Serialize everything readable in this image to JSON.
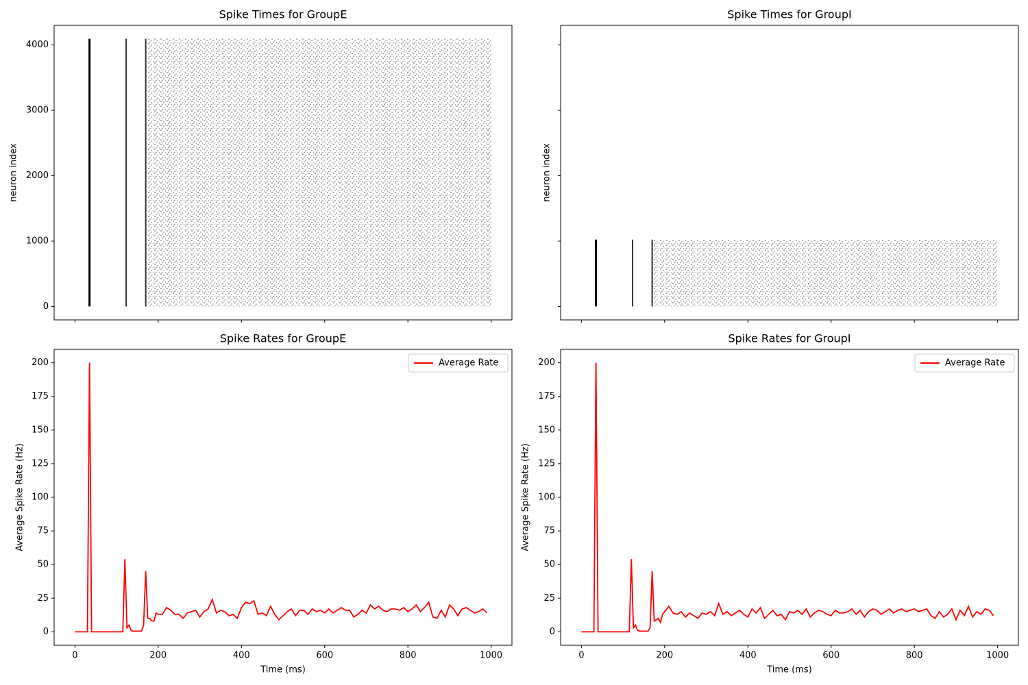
{
  "chart_data": [
    {
      "type": "raster",
      "title": "Spike Times for GroupE",
      "y_label": "neuron index",
      "color": "black",
      "xlim": [
        -50,
        1050
      ],
      "xticks": [
        0,
        200,
        400,
        600,
        800,
        1000
      ],
      "show_xtick_labels": false,
      "ylim": [
        -205,
        4300
      ],
      "yticks": [
        0,
        1000,
        2000,
        3000,
        4000
      ],
      "show_ytick_labels": true,
      "bursts": [
        {
          "x": 35,
          "y": [
            0,
            4095
          ]
        },
        {
          "x": 123,
          "y": [
            0,
            4095
          ]
        },
        {
          "x": 170,
          "y": [
            0,
            4095
          ]
        }
      ],
      "dense_region": {
        "x": [
          170,
          1000
        ],
        "y": [
          0,
          4095
        ]
      }
    },
    {
      "type": "raster",
      "title": "Spike Times for GroupI",
      "y_label": "neuron index",
      "color": "black",
      "xlim": [
        -50,
        1050
      ],
      "xticks": [
        0,
        200,
        400,
        600,
        800,
        1000
      ],
      "show_xtick_labels": false,
      "ylim": [
        -205,
        4300
      ],
      "yticks": [
        0,
        1000,
        2000,
        3000,
        4000
      ],
      "show_ytick_labels": false,
      "bursts": [
        {
          "x": 35,
          "y": [
            0,
            1023
          ]
        },
        {
          "x": 123,
          "y": [
            0,
            1023
          ]
        },
        {
          "x": 170,
          "y": [
            0,
            1023
          ]
        }
      ],
      "dense_region": {
        "x": [
          170,
          1000
        ],
        "y": [
          0,
          1023
        ]
      }
    },
    {
      "type": "line",
      "title": "Spike Rates for GroupE",
      "x_label": "Time (ms)",
      "y_label": "Average Spike Rate (Hz)",
      "xlim": [
        -50,
        1050
      ],
      "xticks": [
        0,
        200,
        400,
        600,
        800,
        1000
      ],
      "show_xtick_labels": true,
      "ylim": [
        -10,
        210
      ],
      "yticks": [
        0,
        25,
        50,
        75,
        100,
        125,
        150,
        175,
        200
      ],
      "show_ytick_labels": true,
      "legend": "upper right",
      "x": [
        0,
        5,
        10,
        15,
        20,
        25,
        30,
        35,
        40,
        45,
        50,
        55,
        60,
        65,
        70,
        75,
        80,
        85,
        90,
        95,
        100,
        105,
        110,
        115,
        120,
        125,
        130,
        135,
        140,
        145,
        150,
        155,
        160,
        165,
        170,
        175,
        180,
        185,
        190,
        195,
        200,
        210,
        220,
        230,
        240,
        250,
        260,
        270,
        280,
        290,
        300,
        310,
        320,
        330,
        340,
        350,
        360,
        370,
        380,
        390,
        400,
        410,
        420,
        430,
        440,
        450,
        460,
        470,
        480,
        490,
        500,
        510,
        520,
        530,
        540,
        550,
        560,
        570,
        580,
        590,
        600,
        610,
        620,
        630,
        640,
        650,
        660,
        670,
        680,
        690,
        700,
        710,
        720,
        730,
        740,
        750,
        760,
        770,
        780,
        790,
        800,
        810,
        820,
        830,
        840,
        850,
        860,
        870,
        880,
        890,
        900,
        910,
        920,
        930,
        940,
        950,
        960,
        970,
        980,
        990
      ],
      "series": [
        {
          "name": "Average Rate",
          "color": "red",
          "values": [
            0,
            0,
            0,
            0,
            0,
            0,
            0,
            200,
            0,
            0,
            0,
            0,
            0,
            0,
            0,
            0,
            0,
            0,
            0,
            0,
            0,
            0,
            0,
            0,
            54,
            3,
            5,
            1,
            0.5,
            0.5,
            0.5,
            0.5,
            0.5,
            5,
            45,
            10,
            10,
            8,
            8,
            14,
            13,
            13,
            18,
            16,
            13,
            13,
            10,
            14,
            15,
            16,
            11,
            15,
            17,
            24,
            14,
            16,
            15,
            12,
            13,
            10,
            18,
            22,
            21,
            23,
            13,
            14,
            12,
            19,
            13,
            9,
            12,
            15,
            17,
            12,
            16,
            16,
            13,
            17,
            15,
            16,
            14,
            17,
            14,
            16,
            18,
            16,
            16,
            11,
            13,
            16,
            14,
            20,
            17,
            19,
            16,
            15,
            17,
            17,
            16,
            18,
            15,
            17,
            20,
            15,
            18,
            22,
            11,
            10,
            16,
            11,
            20,
            17,
            12,
            17,
            18,
            16,
            14,
            15,
            17,
            14
          ]
        }
      ]
    },
    {
      "type": "line",
      "title": "Spike Rates for GroupI",
      "x_label": "Time (ms)",
      "y_label": "Average Spike Rate (Hz)",
      "xlim": [
        -50,
        1050
      ],
      "xticks": [
        0,
        200,
        400,
        600,
        800,
        1000
      ],
      "show_xtick_labels": true,
      "ylim": [
        -10,
        210
      ],
      "yticks": [
        0,
        25,
        50,
        75,
        100,
        125,
        150,
        175,
        200
      ],
      "show_ytick_labels": true,
      "legend": "upper right",
      "x": [
        0,
        5,
        10,
        15,
        20,
        25,
        30,
        35,
        40,
        45,
        50,
        55,
        60,
        65,
        70,
        75,
        80,
        85,
        90,
        95,
        100,
        105,
        110,
        115,
        120,
        125,
        130,
        135,
        140,
        145,
        150,
        155,
        160,
        165,
        170,
        175,
        180,
        185,
        190,
        195,
        200,
        210,
        220,
        230,
        240,
        250,
        260,
        270,
        280,
        290,
        300,
        310,
        320,
        330,
        340,
        350,
        360,
        370,
        380,
        390,
        400,
        410,
        420,
        430,
        440,
        450,
        460,
        470,
        480,
        490,
        500,
        510,
        520,
        530,
        540,
        550,
        560,
        570,
        580,
        590,
        600,
        610,
        620,
        630,
        640,
        650,
        660,
        670,
        680,
        690,
        700,
        710,
        720,
        730,
        740,
        750,
        760,
        770,
        780,
        790,
        800,
        810,
        820,
        830,
        840,
        850,
        860,
        870,
        880,
        890,
        900,
        910,
        920,
        930,
        940,
        950,
        960,
        970,
        980,
        990
      ],
      "series": [
        {
          "name": "Average Rate",
          "color": "red",
          "values": [
            0,
            0,
            0,
            0,
            0,
            0,
            0,
            200,
            0,
            0,
            0,
            0,
            0,
            0,
            0,
            0,
            0,
            0,
            0,
            0,
            0,
            0,
            0,
            0,
            54,
            3,
            5,
            1,
            0.5,
            0.5,
            0.5,
            0.5,
            0.5,
            3,
            45,
            8,
            9,
            10,
            7,
            13,
            15,
            19,
            14,
            13,
            15,
            11,
            14,
            12,
            10,
            14,
            13,
            15,
            12,
            21,
            13,
            15,
            12,
            14,
            16,
            13,
            11,
            17,
            14,
            18,
            10,
            13,
            16,
            12,
            13,
            9,
            15,
            14,
            16,
            13,
            17,
            11,
            14,
            16,
            15,
            13,
            12,
            16,
            14,
            14,
            15,
            17,
            13,
            16,
            11,
            15,
            17,
            16,
            13,
            15,
            17,
            14,
            16,
            17,
            15,
            16,
            17,
            15,
            16,
            17,
            12,
            10,
            15,
            11,
            13,
            17,
            9,
            16,
            12,
            19,
            11,
            15,
            13,
            17,
            16,
            12
          ]
        }
      ]
    }
  ]
}
